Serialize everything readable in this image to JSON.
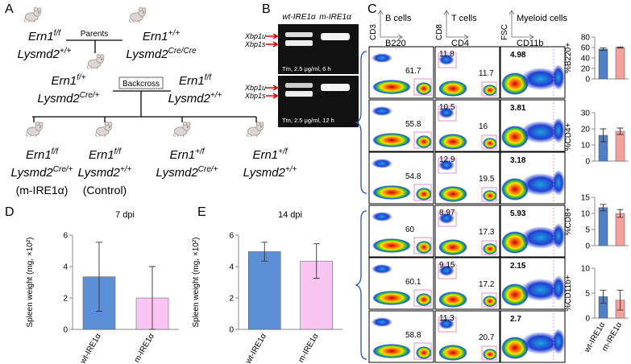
{
  "panel_letters": [
    "A",
    "B",
    "C",
    "D",
    "E"
  ],
  "pedigree": {
    "parents_label": "Parents",
    "backcross_label": "Backcross",
    "nodes": [
      {
        "lines": [
          [
            "Ern1",
            "f/f"
          ],
          [
            "Lysmd2",
            "+/+"
          ]
        ]
      },
      {
        "lines": [
          [
            "Ern1",
            "+/+"
          ],
          [
            "Lysmd2",
            "Cre/Cre"
          ]
        ]
      },
      {
        "lines": [
          [
            "Ern1",
            "f/+"
          ],
          [
            "Lysmd2",
            "Cre/+"
          ]
        ]
      },
      {
        "lines": [
          [
            "Ern1",
            "f/f"
          ],
          [
            "Lysmd2",
            "+/+"
          ]
        ]
      },
      {
        "lines": [
          [
            "Ern1",
            "f/f"
          ],
          [
            "Lysmd2",
            "Cre/+"
          ]
        ],
        "note": "(m-IRE1α)"
      },
      {
        "lines": [
          [
            "Ern1",
            "f/f"
          ],
          [
            "Lysmd2",
            "+/+"
          ]
        ],
        "note": "(Control)"
      },
      {
        "lines": [
          [
            "Ern1",
            "+/f"
          ],
          [
            "Lysmd2",
            "Cre/+"
          ]
        ]
      },
      {
        "lines": [
          [
            "Ern1",
            "+/f"
          ],
          [
            "Lysmd2",
            "+/+"
          ]
        ]
      }
    ]
  },
  "gel": {
    "lanes": [
      "wt-IRE1α",
      "m-IRE1α"
    ],
    "panels": [
      {
        "bands": [
          "Xbp1u",
          "Xbp1s"
        ],
        "caption": "Tm, 2.5 μg/ml, 6 h"
      },
      {
        "bands": [
          "Xbp1u",
          "Xbp1s"
        ],
        "caption": "Tm, 2.5 μg/ml, 12 h"
      }
    ]
  },
  "flow": {
    "columns": [
      {
        "y_axis": "CD3",
        "title": "B cells",
        "x_axis": "B220"
      },
      {
        "y_axis": "CD8",
        "title": "T cells",
        "x_axis": "CD4"
      },
      {
        "y_axis": "FSC",
        "title": "Myeloid cells",
        "x_axis": "CD11b"
      }
    ],
    "rows": [
      {
        "b": 61.7,
        "t_top": 11.8,
        "t_right": 11.7,
        "myeloid": 4.98
      },
      {
        "b": 55.8,
        "t_top": 10.5,
        "t_right": 16,
        "myeloid": 3.81
      },
      {
        "b": 54.8,
        "t_top": 12.9,
        "t_right": 19.5,
        "myeloid": 3.18
      },
      {
        "b": 60,
        "t_top": 8.97,
        "t_right": 17.3,
        "myeloid": 5.93
      },
      {
        "b": 60.1,
        "t_top": 9.15,
        "t_right": 17.2,
        "myeloid": 2.15
      },
      {
        "b": 58.8,
        "t_top": 11.3,
        "t_right": 20.7,
        "myeloid": 2.7
      }
    ]
  },
  "chart_data": [
    {
      "type": "bar",
      "title": "7 dpi",
      "y_label": "Spleen weight (mg, ×10²)",
      "categories": [
        "wt-IRE1α",
        "m-IRE1α"
      ],
      "values": [
        3.35,
        2.0
      ],
      "errors": [
        2.2,
        2.0
      ],
      "colors": [
        "#5b8fd6",
        "#f9c6f4"
      ],
      "ylim": [
        0,
        6
      ],
      "yticks": [
        0,
        2,
        4,
        6
      ]
    },
    {
      "type": "bar",
      "title": "14 dpi",
      "y_label": "Spleen weight (mg, ×10²)",
      "categories": [
        "wt-IRE1α",
        "m-IRE1α"
      ],
      "values": [
        4.95,
        4.35
      ],
      "errors": [
        0.6,
        1.1
      ],
      "colors": [
        "#5b8fd6",
        "#f9c6f4"
      ],
      "ylim": [
        0,
        6
      ],
      "yticks": [
        0,
        2,
        4,
        6
      ]
    },
    {
      "type": "bar",
      "y_label": "%B220+",
      "values": [
        57,
        60
      ],
      "errors": [
        2.5,
        1
      ],
      "colors": [
        "#4f7fc4",
        "#f1a29c"
      ],
      "ylim": [
        0,
        80
      ],
      "yticks": [
        0,
        20,
        40,
        60,
        80
      ]
    },
    {
      "type": "bar",
      "y_label": "%CD4+",
      "values": [
        16,
        18.5
      ],
      "errors": [
        4,
        2
      ],
      "colors": [
        "#4f7fc4",
        "#f1a29c"
      ],
      "ylim": [
        0,
        30
      ],
      "yticks": [
        0,
        10,
        20,
        30
      ]
    },
    {
      "type": "bar",
      "y_label": "%CD8+",
      "values": [
        11.8,
        10
      ],
      "errors": [
        1,
        1.2
      ],
      "colors": [
        "#4f7fc4",
        "#f1a29c"
      ],
      "ylim": [
        0,
        15
      ],
      "yticks": [
        0,
        5,
        10,
        15
      ]
    },
    {
      "type": "bar",
      "y_label": "%CD11b+",
      "categories": [
        "wt-IRE1α",
        "m-IRE1α"
      ],
      "values": [
        4.3,
        3.6
      ],
      "errors": [
        1.3,
        2
      ],
      "colors": [
        "#4f7fc4",
        "#f1a29c"
      ],
      "ylim": [
        0,
        10
      ],
      "yticks": [
        0,
        5,
        10
      ]
    }
  ]
}
